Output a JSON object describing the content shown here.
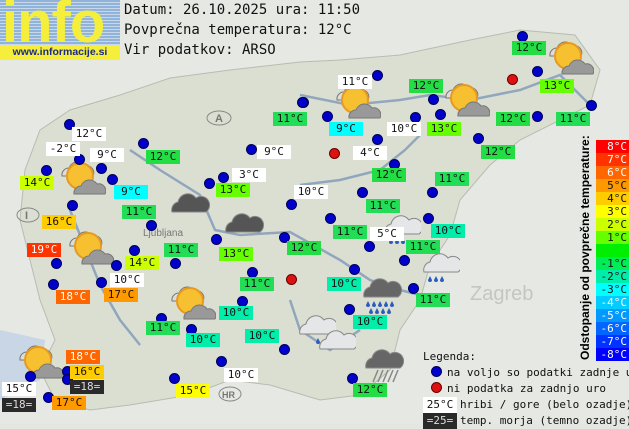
{
  "logo": {
    "text": "info",
    "url": "www.informacije.si"
  },
  "header": {
    "date_line": "Datum: 26.10.2025 ura: 11:50",
    "avg_line": "Povprečna temperatura: 12°C",
    "source_line": "Vir podatkov: ARSO",
    "average_temp": 12
  },
  "map_labels": {
    "country": "A",
    "country2": "I",
    "country3": "HR",
    "city": "Ljubljana",
    "city2": "Zagreb"
  },
  "stations": [
    {
      "t": "12°C",
      "type": "valley"
    },
    {
      "t": "11°C",
      "type": "mountain"
    },
    {
      "t": "12°C",
      "type": "valley"
    },
    {
      "t": "13°C",
      "type": "valley"
    },
    {
      "t": "11°C",
      "type": "valley"
    },
    {
      "t": "9°C",
      "type": "valley"
    },
    {
      "t": "10°C",
      "type": "mountain"
    },
    {
      "t": "13°C",
      "type": "valley"
    },
    {
      "t": "12°C",
      "type": "valley"
    },
    {
      "t": "11°C",
      "type": "valley"
    },
    {
      "t": "12°C",
      "type": "mountain"
    },
    {
      "t": "-2°C",
      "type": "mountain"
    },
    {
      "t": "9°C",
      "type": "mountain"
    },
    {
      "t": "12°C",
      "type": "valley"
    },
    {
      "t": "9°C",
      "type": "mountain"
    },
    {
      "t": "4°C",
      "type": "mountain"
    },
    {
      "t": "12°C",
      "type": "valley"
    },
    {
      "t": "14°C",
      "type": "valley"
    },
    {
      "t": "3°C",
      "type": "mountain"
    },
    {
      "t": "12°C",
      "type": "valley"
    },
    {
      "t": "11°C",
      "type": "valley"
    },
    {
      "t": "9°C",
      "type": "valley"
    },
    {
      "t": "13°C",
      "type": "valley"
    },
    {
      "t": "10°C",
      "type": "mountain"
    },
    {
      "t": "11°C",
      "type": "valley"
    },
    {
      "t": "11°C",
      "type": "valley"
    },
    {
      "t": "16°C",
      "type": "valley"
    },
    {
      "t": "11°C",
      "type": "valley"
    },
    {
      "t": "5°C",
      "type": "mountain"
    },
    {
      "t": "10°C",
      "type": "valley"
    },
    {
      "t": "11°C",
      "type": "valley"
    },
    {
      "t": "13°C",
      "type": "valley"
    },
    {
      "t": "12°C",
      "type": "valley"
    },
    {
      "t": "11°C",
      "type": "valley"
    },
    {
      "t": "19°C",
      "type": "valley"
    },
    {
      "t": "14°C",
      "type": "valley"
    },
    {
      "t": "10°C",
      "type": "mountain"
    },
    {
      "t": "11°C",
      "type": "valley"
    },
    {
      "t": "10°C",
      "type": "valley"
    },
    {
      "t": "18°C",
      "type": "valley"
    },
    {
      "t": "17°C",
      "type": "valley"
    },
    {
      "t": "11°C",
      "type": "valley"
    },
    {
      "t": "11°C",
      "type": "valley"
    },
    {
      "t": "10°C",
      "type": "valley"
    },
    {
      "t": "10°C",
      "type": "valley"
    },
    {
      "t": "10°C",
      "type": "valley"
    },
    {
      "t": "10°C",
      "type": "valley"
    },
    {
      "t": "18°C",
      "type": "valley"
    },
    {
      "t": "16°C",
      "type": "valley"
    },
    {
      "t": "=18=",
      "type": "sea"
    },
    {
      "t": "15°C",
      "type": "mountain"
    },
    {
      "t": "=18=",
      "type": "sea"
    },
    {
      "t": "17°C",
      "type": "valley"
    },
    {
      "t": "15°C",
      "type": "valley"
    },
    {
      "t": "10°C",
      "type": "mountain"
    },
    {
      "t": "12°C",
      "type": "valley"
    }
  ],
  "station_status_counts": {
    "available": 55,
    "missing": 3
  },
  "weather_icons": [
    "sun-cloud",
    "sun-cloud",
    "sun-cloud",
    "sun-cloud",
    "sun-cloud",
    "sun-cloud",
    "sun-cloud",
    "dark-cloud",
    "dark-cloud",
    "cloud-rain",
    "heavy-rain-cloud",
    "cloud-rain",
    "cloud-light-rain",
    "cloud",
    "shower-cloud"
  ],
  "scale": {
    "title": "Odstopanje od povprečne temperature:",
    "rows": [
      {
        "t": "8°C",
        "c": "#ff0000",
        "f": "#fff"
      },
      {
        "t": "7°C",
        "c": "#ff3300",
        "f": "#fff"
      },
      {
        "t": "6°C",
        "c": "#ff6600",
        "f": "#fff"
      },
      {
        "t": "5°C",
        "c": "#ff9900",
        "f": "#111"
      },
      {
        "t": "4°C",
        "c": "#ffcc00",
        "f": "#111"
      },
      {
        "t": "3°C",
        "c": "#ffff00",
        "f": "#111"
      },
      {
        "t": "2°C",
        "c": "#ccff00",
        "f": "#111"
      },
      {
        "t": "1°C",
        "c": "#66ff00",
        "f": "#111"
      },
      {
        "t": "",
        "c": "#00ee00",
        "f": "#111"
      },
      {
        "t": "-1°C",
        "c": "#00ee55",
        "f": "#111"
      },
      {
        "t": "-2°C",
        "c": "#00eeaa",
        "f": "#111"
      },
      {
        "t": "-3°C",
        "c": "#00ffff",
        "f": "#111"
      },
      {
        "t": "-4°C",
        "c": "#00ccff",
        "f": "#fff"
      },
      {
        "t": "-5°C",
        "c": "#0099ff",
        "f": "#fff"
      },
      {
        "t": "-6°C",
        "c": "#0066ff",
        "f": "#fff"
      },
      {
        "t": "-7°C",
        "c": "#0033ff",
        "f": "#fff"
      },
      {
        "t": "-8°C",
        "c": "#0000ff",
        "f": "#fff"
      }
    ]
  },
  "legend": {
    "title": "Legenda:",
    "available": "na voljo so podatki zadnje ure",
    "missing": "ni podatka za zadnjo uro",
    "mountain_sample": "25°C",
    "mountain_text": "hribi / gore (belo ozadje)",
    "sea_sample": "=25=",
    "sea_text": "temp. morja (temno ozadje)"
  },
  "colors": {
    "dot_available": "#0000cc",
    "dot_missing": "#dd1111",
    "mountain_bg": "#ffffff",
    "sea_bg": "#2a2a2a"
  }
}
